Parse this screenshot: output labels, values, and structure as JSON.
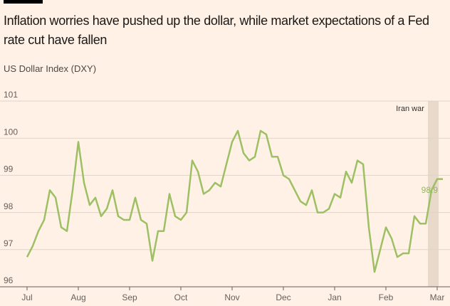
{
  "chart_data": {
    "type": "line",
    "title": "Inflation worries have pushed up the dollar, while market expectations of a Fed rate cut have fallen",
    "subtitle": "US Dollar Index (DXY)",
    "categories": [
      "Jul",
      null,
      null,
      null,
      null,
      null,
      null,
      null,
      null,
      "Aug",
      null,
      null,
      null,
      null,
      null,
      null,
      null,
      null,
      "Sep",
      null,
      null,
      null,
      null,
      null,
      null,
      null,
      null,
      "Oct",
      null,
      null,
      null,
      null,
      null,
      null,
      null,
      null,
      "Nov",
      null,
      null,
      null,
      null,
      null,
      null,
      null,
      null,
      "Dec",
      null,
      null,
      null,
      null,
      null,
      null,
      null,
      null,
      "Jan",
      null,
      null,
      null,
      null,
      null,
      null,
      null,
      null,
      "Feb",
      null,
      null,
      null,
      null,
      null,
      null,
      null,
      null,
      "Mar",
      null
    ],
    "series": [
      {
        "name": "US Dollar Index (DXY)",
        "color": "#9cc063",
        "values": [
          96.8,
          97.1,
          97.5,
          97.8,
          98.6,
          98.4,
          97.6,
          97.5,
          98.6,
          99.9,
          98.8,
          98.2,
          98.4,
          97.9,
          98.1,
          98.6,
          97.9,
          97.8,
          97.8,
          98.4,
          97.8,
          97.7,
          96.7,
          97.5,
          97.5,
          98.5,
          97.9,
          97.8,
          98.0,
          99.4,
          99.1,
          98.5,
          98.6,
          98.8,
          98.7,
          99.3,
          99.9,
          100.2,
          99.6,
          99.4,
          99.5,
          100.2,
          100.1,
          99.5,
          99.5,
          99.0,
          98.9,
          98.6,
          98.3,
          98.2,
          98.6,
          98.0,
          98.0,
          98.1,
          98.5,
          98.4,
          99.1,
          98.8,
          99.4,
          99.3,
          97.6,
          96.4,
          97.0,
          97.6,
          97.3,
          96.8,
          96.9,
          96.9,
          97.9,
          97.7,
          97.7,
          98.6,
          98.9,
          98.9
        ]
      }
    ],
    "ylim": [
      96,
      101
    ],
    "yticks": [
      96,
      97,
      98,
      99,
      100,
      101
    ],
    "grid": true,
    "annotations": [
      {
        "text": "Iran war"
      },
      {
        "text": "98.9"
      }
    ]
  }
}
